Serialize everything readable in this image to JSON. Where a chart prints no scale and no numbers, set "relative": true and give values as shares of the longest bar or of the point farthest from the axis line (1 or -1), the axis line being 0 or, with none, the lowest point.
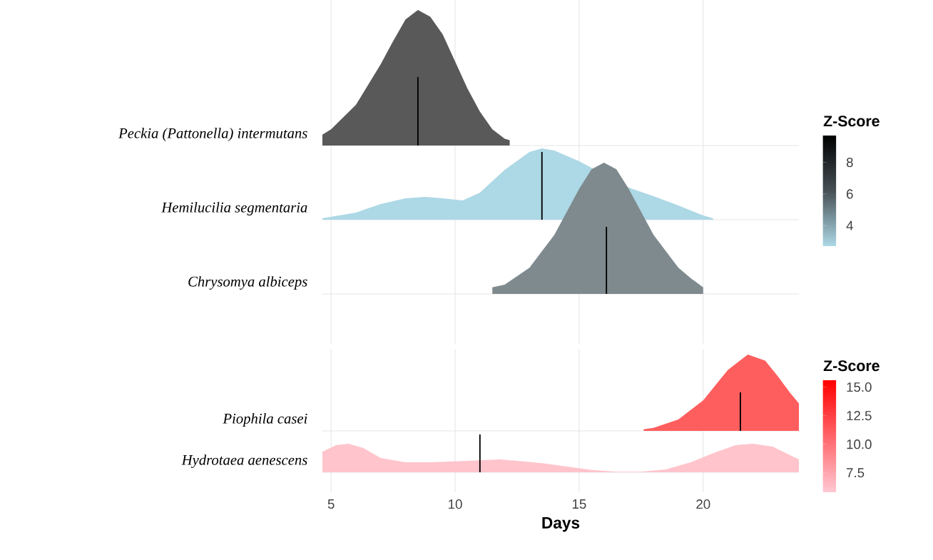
{
  "chart_data": [
    {
      "type": "area",
      "relative": true,
      "ylabel": "Peckia (Pattonella) intermutans",
      "color": "#595959",
      "xlim": [
        4.65,
        23.86
      ],
      "xticks": [
        5,
        10,
        15,
        20
      ],
      "grid": "x",
      "tick_labels": false,
      "clabel": "Z-Score",
      "clim": [
        2.7,
        9.7
      ],
      "cticks": [
        4,
        6,
        8
      ],
      "x": [
        4.65,
        5,
        6,
        7,
        7.5,
        8,
        8.5,
        9,
        9.5,
        10,
        10.5,
        11,
        11.5,
        12,
        12.2
      ],
      "values": [
        0.08,
        0.12,
        0.3,
        0.6,
        0.77,
        0.93,
        1.0,
        0.95,
        0.82,
        0.62,
        0.42,
        0.25,
        0.12,
        0.05,
        0.04
      ],
      "ref_lines": [
        {
          "axis": "x",
          "value": 8.5
        }
      ]
    },
    {
      "type": "area",
      "relative": true,
      "ylabel": "Hemilucilia segmentaria",
      "color": "#add8e6",
      "xlim": [
        4.65,
        23.86
      ],
      "xticks": [
        5,
        10,
        15,
        20
      ],
      "grid": "x",
      "tick_labels": false,
      "x": [
        4.65,
        6,
        7,
        8,
        8.8,
        9.5,
        10.3,
        11,
        12,
        13,
        13.5,
        14,
        15,
        16,
        17,
        18,
        19,
        20,
        20.4
      ],
      "values": [
        0.02,
        0.1,
        0.22,
        0.3,
        0.32,
        0.3,
        0.27,
        0.38,
        0.7,
        0.95,
        1.0,
        0.97,
        0.82,
        null,
        0.45,
        0.33,
        0.2,
        0.06,
        0.02
      ],
      "ref_lines": [
        {
          "axis": "x",
          "value": 13.5
        }
      ]
    },
    {
      "type": "area",
      "relative": true,
      "ylabel": "Chrysomya albiceps",
      "color": "#7f8a8e",
      "xlim": [
        4.65,
        23.86
      ],
      "xticks": [
        5,
        10,
        15,
        20
      ],
      "grid": "x",
      "tick_labels": false,
      "x": [
        11.5,
        12,
        13,
        14,
        15,
        15.5,
        16,
        16.5,
        17,
        18,
        19,
        19.5,
        20
      ],
      "values": [
        0.05,
        0.07,
        0.2,
        0.45,
        0.8,
        0.95,
        1.0,
        0.95,
        0.8,
        0.45,
        0.2,
        0.12,
        0.05
      ],
      "ref_lines": [
        {
          "axis": "x",
          "value": 16.1
        }
      ]
    },
    {
      "type": "area",
      "relative": true,
      "ylabel": "Piophila casei",
      "color": "#ff5e5e",
      "xlim": [
        4.65,
        23.86
      ],
      "xticks": [
        5,
        10,
        15,
        20
      ],
      "grid": "x",
      "tick_labels": false,
      "clabel": "Z-Score",
      "clim": [
        5.8,
        15.6
      ],
      "cticks": [
        7.5,
        {
          "value": 10,
          "label": "10.0"
        },
        12.5,
        {
          "value": 15,
          "label": "15.0"
        }
      ],
      "x": [
        17.6,
        18,
        19,
        20,
        21,
        21.8,
        22.5,
        23,
        23.5,
        23.86
      ],
      "values": [
        0.02,
        0.04,
        0.15,
        0.4,
        0.8,
        1.0,
        0.92,
        0.72,
        0.5,
        0.36
      ],
      "ref_lines": [
        {
          "axis": "x",
          "value": 21.5
        }
      ]
    },
    {
      "type": "area",
      "relative": true,
      "ylabel": "Hydrotaea aenescens",
      "color": "#ffc4cc",
      "xlim": [
        4.65,
        23.86
      ],
      "xticks": [
        5,
        10,
        15,
        20
      ],
      "grid": "x",
      "tick_labels": "x",
      "xlabel": "Days",
      "x": [
        4.65,
        5.2,
        5.7,
        6.3,
        7,
        8,
        9,
        10,
        11,
        11.8,
        12.5,
        13.5,
        14.5,
        15.5,
        16.5,
        17.5,
        18.5,
        19.5,
        20.5,
        21.3,
        22,
        22.8,
        23.5,
        23.86
      ],
      "values": [
        0.72,
        0.95,
        1.0,
        0.85,
        0.5,
        0.35,
        0.35,
        0.38,
        0.42,
        0.45,
        0.4,
        0.32,
        0.2,
        0.08,
        0.02,
        0.02,
        0.1,
        0.35,
        0.7,
        0.95,
        1.0,
        0.9,
        0.6,
        0.45
      ],
      "ref_lines": [
        {
          "axis": "x",
          "value": 11
        }
      ]
    }
  ]
}
